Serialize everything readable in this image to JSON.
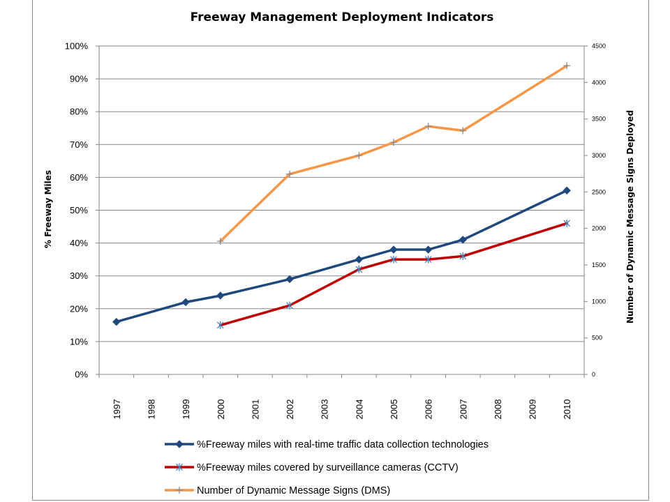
{
  "chart_data": {
    "type": "line",
    "title": "Freeway Management Deployment Indicators",
    "ylabel": "% Freeway Miles",
    "y2label": "Number of Dynamic Message Signs Deployed",
    "categories": [
      "1997",
      "1998",
      "1999",
      "2000",
      "2001",
      "2002",
      "2003",
      "2004",
      "2005",
      "2006",
      "2007",
      "2008",
      "2009",
      "2010"
    ],
    "ylim": [
      0,
      100
    ],
    "y_ticks": [
      "0%",
      "10%",
      "20%",
      "30%",
      "40%",
      "50%",
      "60%",
      "70%",
      "80%",
      "90%",
      "100%"
    ],
    "y2lim": [
      0,
      4500
    ],
    "y2_ticks": [
      "0",
      "500",
      "1000",
      "1500",
      "2000",
      "2500",
      "3000",
      "3500",
      "4000",
      "4500"
    ],
    "grid": "horizontal",
    "legend_position": "bottom",
    "series": [
      {
        "name": "%Freeway miles with real-time traffic data collection technologies",
        "axis": "left",
        "color": "#1f497d",
        "marker": "diamond",
        "values": [
          16,
          null,
          22,
          24,
          null,
          29,
          null,
          35,
          38,
          38,
          41,
          null,
          null,
          56
        ]
      },
      {
        "name": "%Freeway miles covered by surveillance cameras (CCTV)",
        "axis": "left",
        "color": "#c00000",
        "marker": "star",
        "values": [
          null,
          null,
          null,
          15,
          null,
          21,
          null,
          32,
          35,
          35,
          36,
          null,
          null,
          46
        ]
      },
      {
        "name": "Number of Dynamic Message Signs (DMS)",
        "axis": "right",
        "color": "#f79646",
        "marker": "plus",
        "values": [
          null,
          null,
          null,
          1825,
          null,
          2745,
          null,
          3000,
          3180,
          3400,
          3340,
          null,
          null,
          4230
        ]
      }
    ]
  }
}
